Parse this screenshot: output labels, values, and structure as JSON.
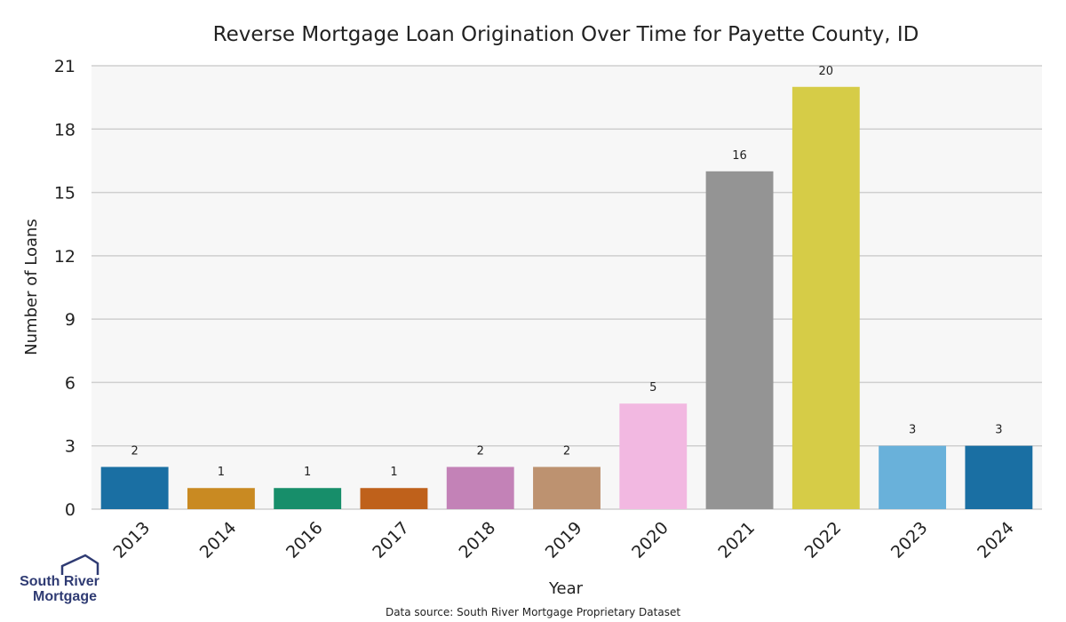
{
  "chart_data": {
    "type": "bar",
    "title": "Reverse Mortgage Loan Origination Over Time for Payette County, ID",
    "xlabel": "Year",
    "ylabel": "Number of Loans",
    "categories": [
      "2013",
      "2014",
      "2016",
      "2017",
      "2018",
      "2019",
      "2020",
      "2021",
      "2022",
      "2023",
      "2024"
    ],
    "values": [
      2,
      1,
      1,
      1,
      2,
      2,
      5,
      16,
      20,
      3,
      3
    ],
    "ylim": [
      0,
      21
    ],
    "yticks": [
      0,
      3,
      6,
      9,
      12,
      15,
      18,
      21
    ],
    "grid": true,
    "colors": [
      "#1a6fa3",
      "#c98a22",
      "#178e6a",
      "#bf611b",
      "#c382b7",
      "#bd9270",
      "#f2b8e1",
      "#949494",
      "#d6cc47",
      "#69b1da",
      "#1a6fa3"
    ]
  },
  "source_note": "Data source: South River Mortgage Proprietary Dataset",
  "logo": {
    "line1": "South River",
    "line2": "Mortgage"
  }
}
